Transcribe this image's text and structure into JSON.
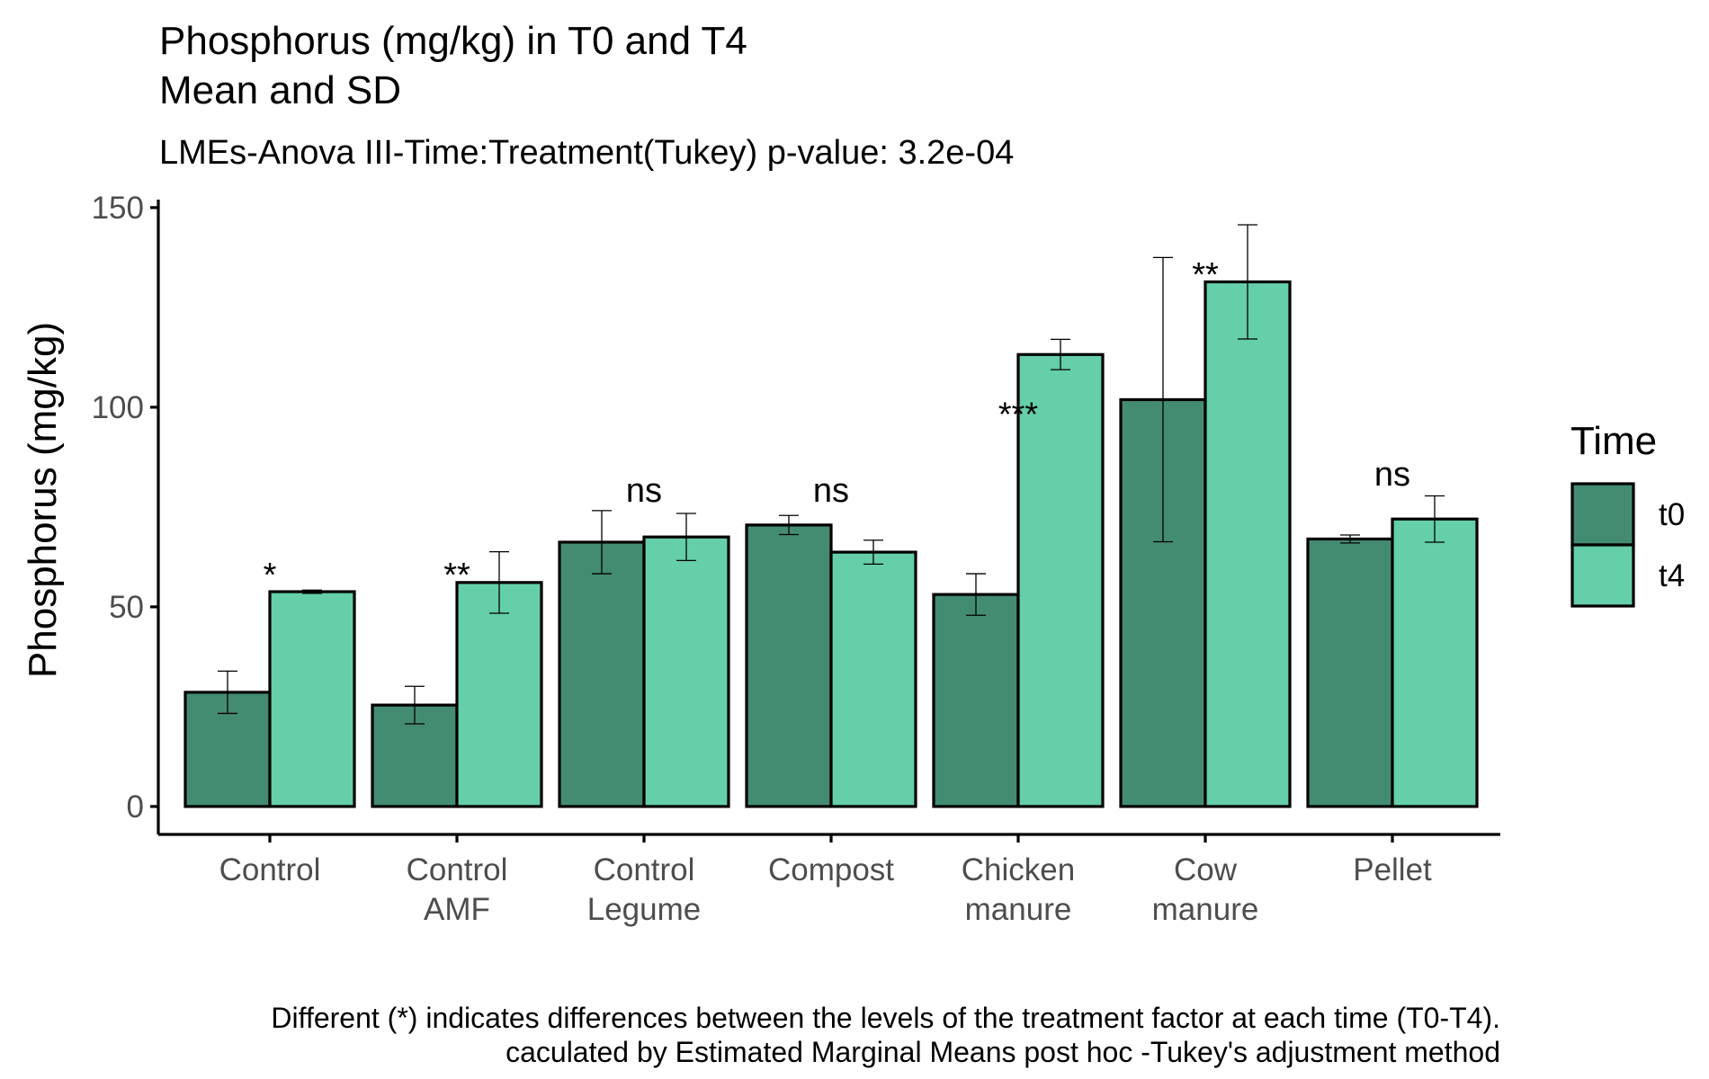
{
  "chart_data": {
    "type": "bar",
    "title": "Phosphorus (mg/kg) in T0 and T4",
    "title_line2": "Mean and SD",
    "subtitle": "LMEs-Anova III-Time:Treatment(Tukey) p-value: 3.2e-04",
    "ylabel": "Phosphorus (mg/kg)",
    "xlabel": "",
    "ylim": [
      -7,
      152
    ],
    "yticks": [
      0,
      50,
      100,
      150
    ],
    "categories": [
      [
        "Control"
      ],
      [
        "Control",
        "AMF"
      ],
      [
        "Control",
        "Legume"
      ],
      [
        "Compost"
      ],
      [
        "Chicken",
        "manure"
      ],
      [
        "Cow",
        "manure"
      ],
      [
        "Pellet"
      ]
    ],
    "series": [
      {
        "name": "t0",
        "color": "#448c71",
        "values": [
          28.6,
          25.4,
          66.2,
          70.5,
          53.1,
          101.9,
          67.0
        ],
        "sd": [
          5.3,
          4.7,
          7.9,
          2.4,
          5.2,
          35.6,
          1.0
        ]
      },
      {
        "name": "t4",
        "color": "#64cfa8",
        "values": [
          53.8,
          56.1,
          67.5,
          63.7,
          113.2,
          131.4,
          72.0
        ],
        "sd": [
          0.4,
          7.7,
          5.9,
          3.0,
          3.8,
          14.3,
          5.8
        ]
      }
    ],
    "significance": [
      {
        "label": "*",
        "y": 53.8
      },
      {
        "label": "**",
        "y": 53.8
      },
      {
        "label": "ns",
        "y": 75.0
      },
      {
        "label": "ns",
        "y": 75.0
      },
      {
        "label": "***",
        "y": 94.0
      },
      {
        "label": "**",
        "y": 129.0
      },
      {
        "label": "ns",
        "y": 79.0
      }
    ],
    "legend": {
      "title": "Time",
      "position": "right",
      "entries": [
        "t0",
        "t4"
      ]
    },
    "grid": false
  },
  "caption": {
    "line1": "Different (*) indicates differences between the levels of the treatment factor at each time (T0-T4).",
    "line2": "caculated by Estimated Marginal Means post hoc -Tukey's adjustment method"
  }
}
